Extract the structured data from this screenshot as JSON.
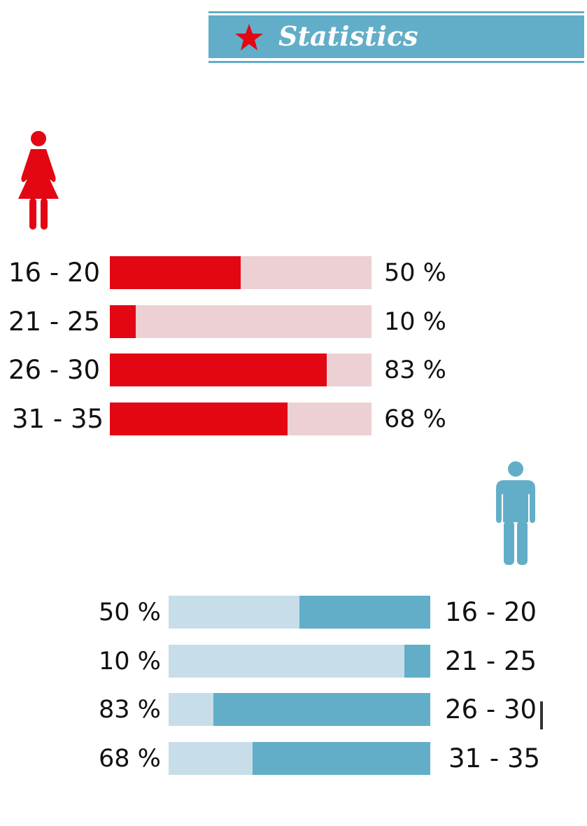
{
  "header": {
    "title": "Statistics",
    "icon": "star-icon"
  },
  "colors": {
    "banner": "#62aec8",
    "female_fill": "#e30613",
    "female_track": "#ecd0d3",
    "male_fill": "#62aec8",
    "male_track": "#c7dde9",
    "star": "#e30613"
  },
  "chart_data": [
    {
      "type": "bar",
      "series": [
        {
          "name": "",
          "values": [
            50,
            10,
            83,
            68
          ]
        }
      ],
      "categories": [
        "16 - 20",
        "21 - 25",
        "26 - 30",
        "31 - 35"
      ],
      "value_labels": [
        "50 %",
        "10 %",
        "83 %",
        "68 %"
      ],
      "orientation": "horizontal",
      "direction": "left-to-right",
      "xlim": [
        0,
        100
      ],
      "icon": "female-figure-icon",
      "title": "",
      "xlabel": "",
      "ylabel": ""
    },
    {
      "type": "bar",
      "series": [
        {
          "name": "",
          "values": [
            50,
            10,
            83,
            68
          ]
        }
      ],
      "categories": [
        "16 - 20",
        "21 - 25",
        "26 - 30",
        "31 - 35"
      ],
      "value_labels": [
        "50 %",
        "10 %",
        "83 %",
        "68 %"
      ],
      "orientation": "horizontal",
      "direction": "right-to-left",
      "xlim": [
        0,
        100
      ],
      "icon": "male-figure-icon",
      "title": "",
      "xlabel": "",
      "ylabel": ""
    }
  ]
}
